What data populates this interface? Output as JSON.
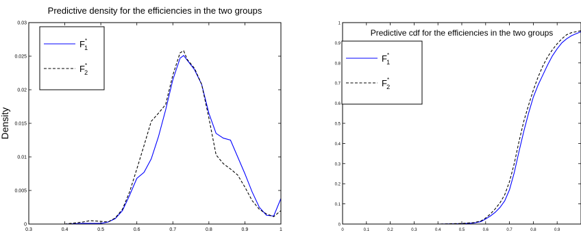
{
  "chart_data": [
    {
      "type": "line",
      "title": "Predictive density for the efficiencies in the two groups",
      "xlabel": "",
      "ylabel": "Density",
      "xlim": [
        0.3,
        1.0
      ],
      "ylim": [
        0,
        0.03
      ],
      "xticks": [
        0.3,
        0.4,
        0.5,
        0.6,
        0.7,
        0.8,
        0.9,
        1.0
      ],
      "xtick_labels": [
        "0.3",
        "0.4",
        "0.5",
        "0.6",
        "0.7",
        "0.8",
        "0.9",
        "1"
      ],
      "yticks": [
        0,
        0.005,
        0.01,
        0.015,
        0.02,
        0.025,
        0.03
      ],
      "ytick_labels": [
        "0",
        "0.005",
        "0.01",
        "0.015",
        "0.02",
        "0.025",
        "0.03"
      ],
      "grid": false,
      "legend_position": "top-left",
      "series": [
        {
          "name": "F*1",
          "style": "solid",
          "color": "#0000ff",
          "x": [
            0.3,
            0.35,
            0.4,
            0.45,
            0.5,
            0.52,
            0.54,
            0.56,
            0.58,
            0.6,
            0.62,
            0.64,
            0.66,
            0.68,
            0.7,
            0.72,
            0.73,
            0.74,
            0.76,
            0.78,
            0.8,
            0.82,
            0.84,
            0.86,
            0.88,
            0.9,
            0.92,
            0.94,
            0.96,
            0.98,
            1.0
          ],
          "y": [
            0,
            0,
            0,
            0.0001,
            0.0001,
            0.0003,
            0.0008,
            0.002,
            0.0043,
            0.0068,
            0.0077,
            0.0097,
            0.013,
            0.017,
            0.0215,
            0.0247,
            0.0251,
            0.0244,
            0.023,
            0.0208,
            0.0165,
            0.0135,
            0.0128,
            0.0125,
            0.01,
            0.0075,
            0.0048,
            0.0025,
            0.0013,
            0.0012,
            0.0038
          ]
        },
        {
          "name": "F*2",
          "style": "dashed",
          "color": "#000000",
          "x": [
            0.3,
            0.35,
            0.4,
            0.45,
            0.47,
            0.5,
            0.52,
            0.54,
            0.56,
            0.58,
            0.6,
            0.62,
            0.64,
            0.66,
            0.68,
            0.7,
            0.72,
            0.73,
            0.74,
            0.76,
            0.78,
            0.8,
            0.82,
            0.84,
            0.86,
            0.88,
            0.9,
            0.92,
            0.94,
            0.96,
            0.98,
            1.0
          ],
          "y": [
            0,
            0,
            0,
            0.0003,
            0.0005,
            0.0004,
            0.0003,
            0.0009,
            0.0022,
            0.0048,
            0.0082,
            0.0117,
            0.0153,
            0.0165,
            0.0178,
            0.0222,
            0.0255,
            0.0258,
            0.0245,
            0.0232,
            0.0208,
            0.0158,
            0.0103,
            0.009,
            0.0082,
            0.0073,
            0.0055,
            0.0035,
            0.0022,
            0.0015,
            0.0011,
            0.002
          ]
        }
      ]
    },
    {
      "type": "line",
      "title": "Predictive cdf for the efficiencies in the two groups",
      "xlabel": "",
      "ylabel": "",
      "xlim": [
        0,
        1.0
      ],
      "ylim": [
        0,
        1.0
      ],
      "xticks": [
        0,
        0.1,
        0.2,
        0.3,
        0.4,
        0.5,
        0.6,
        0.7,
        0.8,
        0.9
      ],
      "xtick_labels": [
        "0",
        "0.1",
        "0.2",
        "0.3",
        "0.4",
        "0.5",
        "0.6",
        "0.7",
        "0.8",
        "0.9"
      ],
      "yticks": [
        0,
        0.1,
        0.2,
        0.3,
        0.4,
        0.5,
        0.6,
        0.7,
        0.8,
        0.9,
        1.0
      ],
      "ytick_labels": [
        "0",
        "0.1",
        "0.2",
        "0.3",
        "0.4",
        "0.5",
        "0.6",
        "0.7",
        "0.8",
        "0.9",
        "1"
      ],
      "grid": false,
      "legend_position": "top-left",
      "series": [
        {
          "name": "F*1",
          "style": "solid",
          "color": "#0000ff",
          "x": [
            0,
            0.1,
            0.2,
            0.3,
            0.4,
            0.5,
            0.55,
            0.58,
            0.6,
            0.62,
            0.64,
            0.66,
            0.68,
            0.7,
            0.72,
            0.74,
            0.76,
            0.78,
            0.8,
            0.82,
            0.84,
            0.86,
            0.88,
            0.9,
            0.92,
            0.94,
            0.96,
            0.98,
            1.0
          ],
          "y": [
            0,
            0,
            0,
            0,
            0,
            0.002,
            0.005,
            0.012,
            0.025,
            0.04,
            0.058,
            0.082,
            0.115,
            0.17,
            0.255,
            0.36,
            0.46,
            0.55,
            0.63,
            0.69,
            0.74,
            0.79,
            0.835,
            0.87,
            0.9,
            0.92,
            0.935,
            0.945,
            0.955
          ]
        },
        {
          "name": "F*2",
          "style": "dashed",
          "color": "#000000",
          "x": [
            0,
            0.1,
            0.2,
            0.3,
            0.4,
            0.5,
            0.55,
            0.58,
            0.6,
            0.62,
            0.64,
            0.66,
            0.68,
            0.7,
            0.72,
            0.74,
            0.76,
            0.78,
            0.8,
            0.82,
            0.84,
            0.86,
            0.88,
            0.9,
            0.92,
            0.94,
            0.96,
            0.98,
            1.0
          ],
          "y": [
            0,
            0,
            0,
            0,
            0,
            0.003,
            0.007,
            0.015,
            0.03,
            0.05,
            0.075,
            0.105,
            0.145,
            0.21,
            0.3,
            0.41,
            0.51,
            0.59,
            0.665,
            0.73,
            0.785,
            0.83,
            0.865,
            0.895,
            0.92,
            0.94,
            0.95,
            0.955,
            0.96
          ]
        }
      ]
    }
  ]
}
